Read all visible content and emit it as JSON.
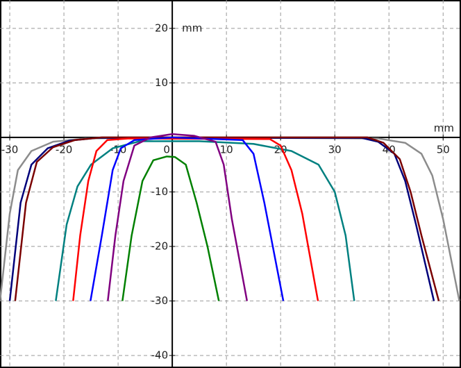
{
  "chart_data": {
    "type": "line",
    "xlabel": "mm",
    "ylabel": "mm",
    "xlim": [
      -31.8,
      53.3
    ],
    "ylim": [
      -42.3,
      25.2
    ],
    "xticks": [
      -30,
      -20,
      -10,
      0,
      10,
      20,
      30,
      40,
      50
    ],
    "yticks": [
      20,
      10,
      -10,
      -20,
      -30,
      -40
    ],
    "grid": true,
    "series": [
      {
        "color": "#8c8c8c",
        "x": [
          -31.8,
          -30,
          -28.5,
          -26,
          -22,
          -16,
          0,
          38,
          43,
          46,
          48,
          50,
          53
        ],
        "values": [
          -30,
          -14,
          -6,
          -2.5,
          -0.8,
          -0.2,
          0,
          -0.2,
          -1,
          -3,
          -7,
          -15,
          -30
        ]
      },
      {
        "color": "#00007a",
        "x": [
          -30,
          -28,
          -26,
          -23,
          -19,
          -14,
          35,
          38,
          41,
          43,
          45,
          48.3
        ],
        "values": [
          -30,
          -12,
          -5,
          -2,
          -0.6,
          -0.1,
          -0.1,
          -0.8,
          -3,
          -8,
          -16,
          -30
        ]
      },
      {
        "color": "#7a0000",
        "x": [
          -29,
          -27,
          -25,
          -22,
          -18,
          -13,
          36,
          39,
          42,
          44,
          46,
          49.2
        ],
        "values": [
          -30,
          -12,
          -4.5,
          -1.8,
          -0.5,
          0,
          0,
          -1,
          -4,
          -10,
          -18,
          -30
        ]
      },
      {
        "color": "#008080",
        "x": [
          -21.5,
          -19.5,
          -17.5,
          -15,
          -11,
          -6,
          5,
          15,
          22,
          27,
          30,
          32,
          33.6
        ],
        "values": [
          -30,
          -16,
          -9,
          -5,
          -2,
          -0.7,
          -0.7,
          -1.2,
          -2.5,
          -5,
          -10,
          -18,
          -30
        ]
      },
      {
        "color": "#ff0000",
        "x": [
          -18.3,
          -17,
          -15.5,
          -14,
          -12,
          -8,
          18,
          20,
          22,
          24,
          26.9
        ],
        "values": [
          -30,
          -18,
          -8,
          -2.5,
          -0.5,
          -0.2,
          -0.3,
          -1.5,
          -6,
          -14,
          -30
        ]
      },
      {
        "color": "#0000ff",
        "x": [
          -15.1,
          -13,
          -11,
          -9.5,
          -7,
          0,
          13,
          15,
          17,
          20.5
        ],
        "values": [
          -30,
          -18,
          -6,
          -2,
          -0.5,
          0,
          -0.5,
          -3,
          -12,
          -30
        ]
      },
      {
        "color": "#800080",
        "x": [
          -11.9,
          -10.5,
          -9,
          -7,
          -4,
          0,
          4,
          8,
          9.5,
          11,
          13.8
        ],
        "values": [
          -30,
          -18,
          -8,
          -1.5,
          0,
          0.6,
          0.3,
          -0.8,
          -5,
          -15,
          -30
        ]
      },
      {
        "color": "#008000",
        "x": [
          -9.2,
          -7.5,
          -5.5,
          -3.5,
          -1,
          0.5,
          2.5,
          4.5,
          6.5,
          8.6
        ],
        "values": [
          -30,
          -18,
          -8,
          -4.2,
          -3.5,
          -3.6,
          -5,
          -12,
          -20,
          -30
        ]
      }
    ]
  }
}
